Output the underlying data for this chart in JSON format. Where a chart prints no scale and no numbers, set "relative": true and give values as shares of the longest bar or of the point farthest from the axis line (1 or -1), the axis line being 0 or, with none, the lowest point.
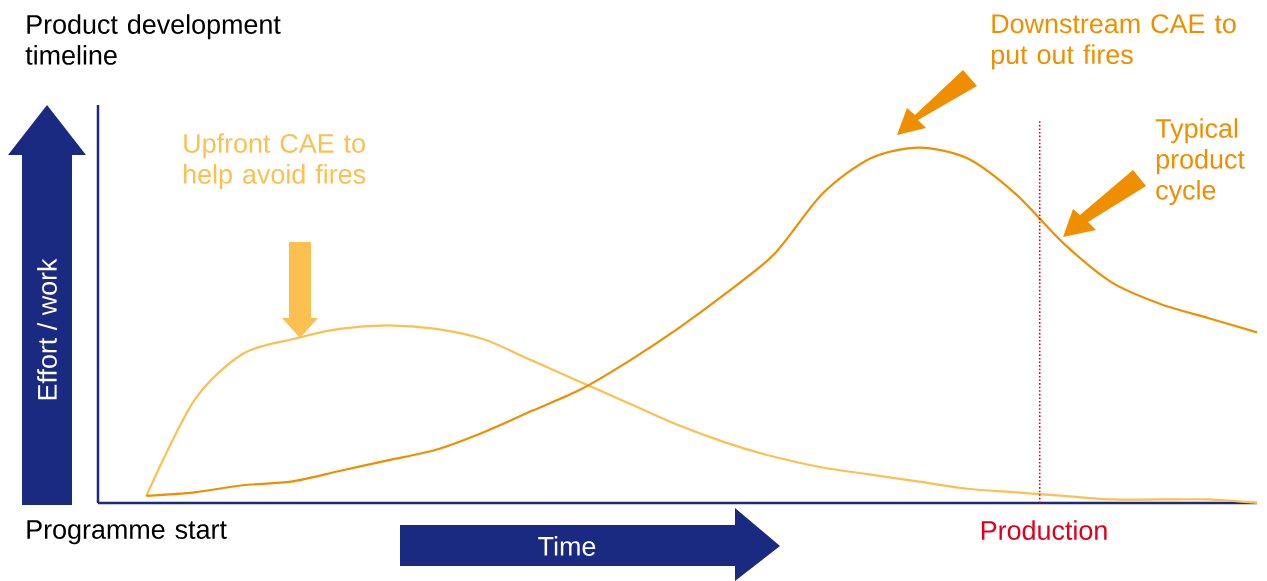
{
  "chart_data": {
    "type": "line",
    "relative": true,
    "title": "Product development timeline",
    "xlabel": "Time",
    "ylabel": "Effort / work",
    "categories": [
      null,
      null,
      null,
      null,
      null,
      null,
      null,
      null,
      null,
      null,
      null,
      null,
      null,
      null,
      null,
      null,
      null,
      null,
      null,
      null,
      null,
      null,
      null,
      null,
      null
    ],
    "series": [
      {
        "color": "#fbc04f",
        "values": [
          null,
          0.02,
          0.29,
          0.42,
          0.46,
          0.49,
          0.5,
          0.49,
          0.46,
          0.4,
          0.34,
          0.28,
          0.22,
          0.17,
          0.13,
          0.1,
          0.08,
          0.06,
          0.04,
          0.03,
          0.02,
          0.01,
          0.01,
          0.01,
          0.0
        ]
      },
      {
        "color": "#ef8f00",
        "values": [
          null,
          0.02,
          0.03,
          0.05,
          0.06,
          0.09,
          0.12,
          0.15,
          0.2,
          0.26,
          0.32,
          0.4,
          0.49,
          0.59,
          0.7,
          0.87,
          0.97,
          1.0,
          0.97,
          0.87,
          0.73,
          0.62,
          0.56,
          0.52,
          0.48
        ]
      }
    ],
    "annotations": [
      "Upfront CAE to help avoid fires",
      "Downstream CAE to put out fires",
      "Typical product cycle",
      "Programme start",
      "Production"
    ],
    "marker": "none",
    "line_style": "solid"
  }
}
